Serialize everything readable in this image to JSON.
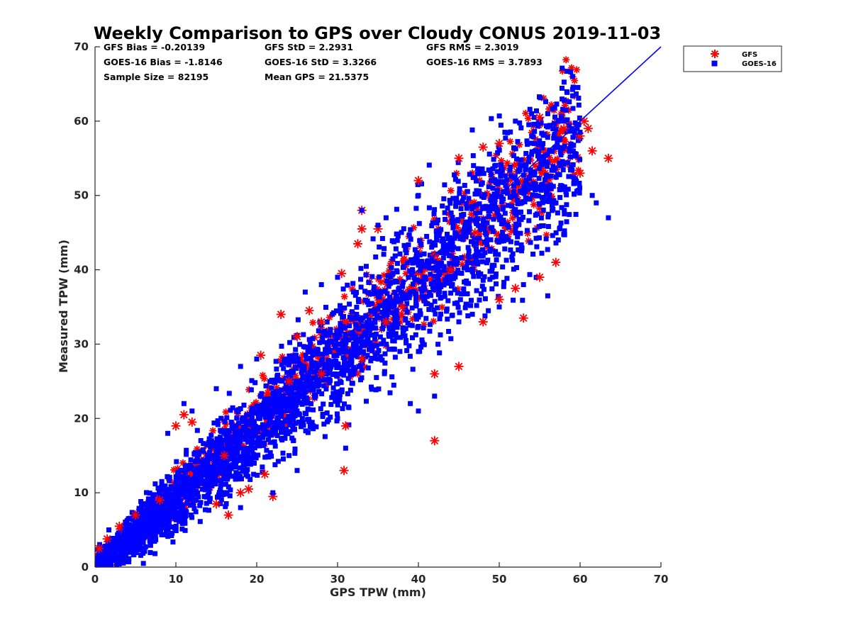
{
  "chart_data": {
    "type": "scatter",
    "title": "Weekly Comparison to GPS over Cloudy CONUS 2019-11-03",
    "xlabel": "GPS TPW (mm)",
    "ylabel": "Measured TPW (mm)",
    "xlim": [
      0,
      70
    ],
    "ylim": [
      0,
      70
    ],
    "xticks": [
      "0",
      "10",
      "20",
      "30",
      "40",
      "50",
      "60",
      "70"
    ],
    "yticks": [
      "0",
      "10",
      "20",
      "30",
      "40",
      "50",
      "60",
      "70"
    ],
    "grid": false,
    "legend_position": "outside-top-right",
    "stats": [
      [
        "GFS Bias = -0.20139",
        "GFS StD = 2.2931",
        "GFS RMS = 2.3019"
      ],
      [
        "GOES-16 Bias = -1.8146",
        "GOES-16 StD = 3.3266",
        "GOES-16 RMS = 3.7893"
      ],
      [
        "Sample Size = 82195",
        "Mean GPS = 21.5375"
      ]
    ],
    "reference_line": {
      "x": [
        0,
        70
      ],
      "y": [
        0,
        70
      ],
      "color": "#0000ff"
    },
    "series": [
      {
        "name": "GFS",
        "marker": "asterisk",
        "color": "#ff0000",
        "bias": -0.20139,
        "std": 2.2931,
        "points": [
          [
            0.5,
            2.5
          ],
          [
            1.5,
            3.8
          ],
          [
            3,
            5.5
          ],
          [
            5,
            7
          ],
          [
            10,
            19
          ],
          [
            11,
            20.5
          ],
          [
            12,
            19.5
          ],
          [
            15,
            8.5
          ],
          [
            16.5,
            7
          ],
          [
            18,
            10
          ],
          [
            19,
            10.5
          ],
          [
            21,
            12.5
          ],
          [
            22,
            9.5
          ],
          [
            20.5,
            28.5
          ],
          [
            23,
            34
          ],
          [
            25,
            31
          ],
          [
            26.5,
            34.5
          ],
          [
            28,
            33
          ],
          [
            30.5,
            39.5
          ],
          [
            33,
            48
          ],
          [
            33,
            45.5
          ],
          [
            32.5,
            43.5
          ],
          [
            35,
            45.5
          ],
          [
            31,
            19
          ],
          [
            30.8,
            13
          ],
          [
            42,
            17
          ],
          [
            42,
            26
          ],
          [
            45,
            27
          ],
          [
            48,
            33
          ],
          [
            50,
            36
          ],
          [
            52,
            37.5
          ],
          [
            53,
            33.5
          ],
          [
            55,
            39
          ],
          [
            57,
            41
          ],
          [
            40,
            52
          ],
          [
            45,
            55
          ],
          [
            48,
            56.5
          ],
          [
            50,
            57
          ],
          [
            55,
            60.5
          ],
          [
            58,
            59
          ],
          [
            60,
            58
          ],
          [
            60.5,
            60
          ],
          [
            61,
            59
          ],
          [
            61.5,
            56
          ],
          [
            60,
            53
          ],
          [
            63.5,
            55
          ],
          [
            33,
            28
          ],
          [
            36,
            33
          ],
          [
            24,
            25
          ],
          [
            44,
            40
          ],
          [
            38,
            35
          ],
          [
            28,
            26
          ],
          [
            16,
            15
          ],
          [
            8,
            9
          ],
          [
            42,
            42
          ],
          [
            47,
            45
          ]
        ]
      },
      {
        "name": "GOES-16",
        "marker": "square",
        "color": "#0000ff",
        "bias": -1.8146,
        "std": 3.3266,
        "points": [
          [
            33,
            48
          ],
          [
            35,
            46
          ],
          [
            36,
            47
          ],
          [
            40,
            50
          ],
          [
            52,
            60
          ],
          [
            54,
            61
          ],
          [
            56,
            61
          ],
          [
            58,
            60
          ],
          [
            60,
            58.5
          ],
          [
            61.5,
            50
          ],
          [
            62,
            49
          ],
          [
            63.5,
            47
          ],
          [
            56,
            36.5
          ],
          [
            53,
            38
          ],
          [
            50,
            35
          ],
          [
            45,
            33
          ],
          [
            40,
            29
          ],
          [
            35,
            28
          ],
          [
            42,
            23
          ],
          [
            40,
            21
          ],
          [
            39,
            22
          ],
          [
            31,
            16
          ],
          [
            30,
            20
          ],
          [
            25,
            21
          ],
          [
            27,
            19
          ],
          [
            20,
            28
          ],
          [
            18,
            27
          ],
          [
            15,
            24
          ],
          [
            12,
            21
          ],
          [
            11,
            22
          ],
          [
            9,
            18
          ],
          [
            28,
            38
          ],
          [
            30,
            39
          ],
          [
            26,
            37
          ],
          [
            22,
            10
          ],
          [
            18,
            8
          ],
          [
            25,
            13
          ],
          [
            24,
            15
          ]
        ]
      }
    ]
  }
}
